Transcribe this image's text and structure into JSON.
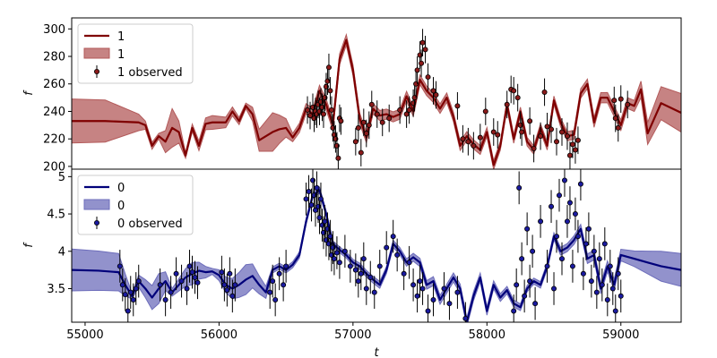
{
  "chart_data": [
    {
      "type": "line",
      "panel": "top",
      "xlabel": "",
      "ylabel": "f",
      "xlim": [
        54900,
        59450
      ],
      "ylim": [
        198,
        308
      ],
      "yticks": [
        200,
        220,
        240,
        260,
        280,
        300
      ],
      "legend_placement": "upper-left",
      "legend": {
        "line": "1",
        "band": "1",
        "observed": "1 observed"
      },
      "colors": {
        "line": "#7f0000",
        "band": "#b35a5a",
        "points": "#8b1a1a"
      },
      "series": [
        {
          "name": "1",
          "kind": "model",
          "x": [
            54900,
            55150,
            55400,
            55450,
            55500,
            55550,
            55600,
            55650,
            55700,
            55750,
            55800,
            55850,
            55900,
            55950,
            56050,
            56100,
            56150,
            56200,
            56250,
            56300,
            56400,
            56450,
            56500,
            56550,
            56600,
            56650,
            56700,
            56750,
            56800,
            56850,
            56900,
            56950,
            57000,
            57050,
            57100,
            57150,
            57200,
            57250,
            57300,
            57350,
            57400,
            57450,
            57500,
            57550,
            57600,
            57650,
            57700,
            57750,
            57800,
            57850,
            57900,
            57950,
            58000,
            58050,
            58100,
            58150,
            58200,
            58250,
            58300,
            58350,
            58400,
            58450,
            58500,
            58550,
            58600,
            58650,
            58700,
            58750,
            58800,
            58850,
            58900,
            58950,
            59000,
            59050,
            59100,
            59150,
            59200,
            59300,
            59450
          ],
          "y": [
            233,
            233,
            232,
            230,
            215,
            222,
            218,
            228,
            225,
            208,
            228,
            215,
            231,
            232,
            232,
            240,
            233,
            244,
            238,
            219,
            225,
            227,
            228,
            221,
            228,
            242,
            238,
            255,
            245,
            230,
            278,
            292,
            270,
            235,
            221,
            242,
            237,
            238,
            236,
            238,
            251,
            240,
            263,
            255,
            250,
            242,
            250,
            236,
            215,
            222,
            216,
            212,
            225,
            201,
            215,
            245,
            220,
            240,
            218,
            212,
            228,
            215,
            248,
            232,
            222,
            223,
            253,
            260,
            232,
            250,
            250,
            240,
            230,
            246,
            244,
            256,
            224,
            246,
            239
          ]
        },
        {
          "name": "1 observed",
          "kind": "observed",
          "x": [
            56660,
            56680,
            56700,
            56710,
            56720,
            56730,
            56740,
            56750,
            56760,
            56770,
            56780,
            56790,
            56800,
            56810,
            56820,
            56830,
            56840,
            56850,
            56860,
            56870,
            56880,
            56890,
            56900,
            56910,
            57020,
            57040,
            57060,
            57080,
            57100,
            57120,
            57140,
            57180,
            57220,
            57270,
            57350,
            57400,
            57420,
            57450,
            57460,
            57470,
            57480,
            57500,
            57510,
            57520,
            57540,
            57560,
            57600,
            57620,
            57780,
            57820,
            57860,
            57900,
            57950,
            57990,
            58050,
            58080,
            58150,
            58180,
            58200,
            58230,
            58250,
            58260,
            58320,
            58350,
            58400,
            58430,
            58450,
            58480,
            58520,
            58560,
            58600,
            58620,
            58640,
            58660,
            58680,
            58950,
            58960,
            58980,
            59000,
            59050
          ],
          "y": [
            241,
            237,
            243,
            235,
            240,
            238,
            245,
            240,
            247,
            243,
            238,
            250,
            258,
            262,
            272,
            255,
            241,
            228,
            223,
            220,
            215,
            206,
            235,
            233,
            218,
            228,
            210,
            232,
            224,
            230,
            245,
            238,
            232,
            235,
            241,
            238,
            241,
            246,
            250,
            260,
            270,
            281,
            275,
            290,
            285,
            265,
            255,
            252,
            244,
            220,
            218,
            215,
            221,
            240,
            225,
            223,
            245,
            256,
            255,
            250,
            230,
            225,
            233,
            213,
            222,
            254,
            229,
            227,
            218,
            225,
            222,
            208,
            216,
            212,
            219,
            248,
            235,
            228,
            249,
            245
          ]
        }
      ]
    },
    {
      "type": "line",
      "panel": "bottom",
      "xlabel": "t",
      "ylabel": "f",
      "xlim": [
        54900,
        59450
      ],
      "ylim": [
        3.05,
        5.1
      ],
      "yticks": [
        3.5,
        4.0,
        4.5,
        5.0
      ],
      "xticks": [
        55000,
        56000,
        57000,
        58000,
        59000
      ],
      "legend_placement": "upper-left",
      "legend": {
        "line": "0",
        "band": "0",
        "observed": "0 observed"
      },
      "colors": {
        "line": "#00007a",
        "band": "#6d6dbb",
        "points": "#1a1aa0"
      },
      "series": [
        {
          "name": "0",
          "kind": "model",
          "x": [
            54900,
            55100,
            55250,
            55300,
            55350,
            55400,
            55450,
            55500,
            55550,
            55600,
            55650,
            55700,
            55750,
            55800,
            55850,
            55900,
            55950,
            56000,
            56050,
            56100,
            56150,
            56200,
            56250,
            56300,
            56350,
            56400,
            56450,
            56500,
            56550,
            56600,
            56650,
            56700,
            56750,
            56800,
            56850,
            56900,
            56950,
            57000,
            57050,
            57100,
            57150,
            57200,
            57250,
            57300,
            57350,
            57400,
            57450,
            57500,
            57550,
            57600,
            57650,
            57700,
            57750,
            57800,
            57850,
            57900,
            57950,
            58000,
            58050,
            58100,
            58150,
            58200,
            58250,
            58300,
            58350,
            58400,
            58450,
            58500,
            58550,
            58600,
            58650,
            58700,
            58750,
            58800,
            58850,
            58900,
            58950,
            59000,
            59100,
            59200,
            59300,
            59450
          ],
          "y": [
            3.75,
            3.74,
            3.72,
            3.55,
            3.4,
            3.6,
            3.5,
            3.38,
            3.5,
            3.6,
            3.45,
            3.55,
            3.65,
            3.7,
            3.74,
            3.72,
            3.73,
            3.68,
            3.55,
            3.5,
            3.55,
            3.62,
            3.67,
            3.55,
            3.45,
            3.75,
            3.8,
            3.75,
            3.82,
            3.95,
            4.4,
            4.75,
            4.82,
            4.5,
            4.1,
            4.02,
            3.95,
            3.85,
            3.8,
            3.7,
            3.62,
            3.55,
            3.75,
            4.1,
            4.0,
            3.85,
            3.92,
            3.85,
            3.55,
            3.6,
            3.35,
            3.5,
            3.65,
            3.5,
            3.05,
            3.4,
            3.65,
            3.2,
            3.55,
            3.38,
            3.48,
            3.3,
            3.25,
            3.5,
            3.6,
            3.55,
            3.8,
            4.2,
            4.0,
            4.05,
            4.15,
            4.3,
            3.9,
            3.95,
            3.5,
            3.8,
            3.55,
            3.95,
            3.9,
            3.85,
            3.8,
            3.75
          ]
        },
        {
          "name": "0 observed",
          "kind": "observed",
          "x": [
            55260,
            55280,
            55300,
            55320,
            55340,
            55360,
            55380,
            55400,
            55560,
            55600,
            55640,
            55680,
            55720,
            55760,
            55780,
            55800,
            55820,
            55840,
            56020,
            56040,
            56060,
            56080,
            56100,
            56120,
            56380,
            56400,
            56420,
            56450,
            56480,
            56500,
            56650,
            56670,
            56690,
            56700,
            56710,
            56720,
            56730,
            56740,
            56750,
            56760,
            56770,
            56780,
            56790,
            56800,
            56810,
            56820,
            56830,
            56840,
            56850,
            56860,
            56880,
            56900,
            56940,
            56980,
            57020,
            57040,
            57060,
            57080,
            57100,
            57130,
            57160,
            57200,
            57250,
            57300,
            57330,
            57380,
            57420,
            57450,
            57480,
            57500,
            57520,
            57560,
            57600,
            57680,
            57720,
            57780,
            57840,
            58200,
            58220,
            58240,
            58260,
            58280,
            58300,
            58320,
            58340,
            58360,
            58400,
            58450,
            58480,
            58500,
            58520,
            58540,
            58560,
            58580,
            58600,
            58620,
            58640,
            58660,
            58680,
            58700,
            58720,
            58740,
            58760,
            58780,
            58800,
            58820,
            58840,
            58860,
            58880,
            58900,
            58920,
            58940,
            58960,
            58980,
            59000
          ],
          "y": [
            3.8,
            3.55,
            3.42,
            3.2,
            3.45,
            3.35,
            3.5,
            3.6,
            3.55,
            3.35,
            3.45,
            3.7,
            3.6,
            3.5,
            3.8,
            3.72,
            3.65,
            3.58,
            3.72,
            3.55,
            3.48,
            3.7,
            3.4,
            3.55,
            3.45,
            3.6,
            3.35,
            3.7,
            3.55,
            3.8,
            4.7,
            4.8,
            4.62,
            4.95,
            4.75,
            4.55,
            4.85,
            4.6,
            4.45,
            4.7,
            4.35,
            4.25,
            4.4,
            4.15,
            4.3,
            4.1,
            4.2,
            3.95,
            4.05,
            3.9,
            3.98,
            3.85,
            4.0,
            3.8,
            3.75,
            3.6,
            3.7,
            3.9,
            3.5,
            3.65,
            3.45,
            3.8,
            4.05,
            4.2,
            3.95,
            3.7,
            3.85,
            3.55,
            3.4,
            3.6,
            3.5,
            3.2,
            3.35,
            3.5,
            3.3,
            3.45,
            3.1,
            3.2,
            3.55,
            4.85,
            3.9,
            3.4,
            4.3,
            3.6,
            4.0,
            3.3,
            4.4,
            3.8,
            4.6,
            3.5,
            4.2,
            4.75,
            3.9,
            4.95,
            4.4,
            4.65,
            3.8,
            4.5,
            4.2,
            4.9,
            3.7,
            4.1,
            4.3,
            3.6,
            4.0,
            3.45,
            3.9,
            3.55,
            4.1,
            3.35,
            3.8,
            3.5,
            3.2,
            3.7,
            3.4
          ]
        }
      ]
    }
  ]
}
